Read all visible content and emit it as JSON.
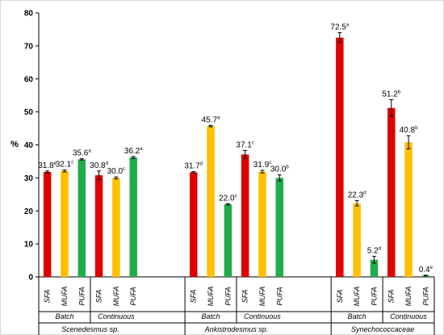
{
  "chart_data": {
    "type": "bar",
    "ylabel": "%",
    "ylim": [
      0,
      80
    ],
    "yticks": [
      0,
      10,
      20,
      30,
      40,
      50,
      60,
      70,
      80
    ],
    "grid": false,
    "colors": {
      "SFA": "#e00000",
      "MUFA": "#ffc000",
      "PUFA": "#1fad4b"
    },
    "organisms": [
      {
        "name": "Scenedesmus sp.",
        "groups": [
          {
            "name": "Batch",
            "bars": [
              {
                "category": "SFA",
                "value": 31.8,
                "error": 0.3,
                "label": "31.8",
                "letter": "e"
              },
              {
                "category": "MUFA",
                "value": 32.1,
                "error": 0.3,
                "label": "32.1",
                "letter": "c"
              },
              {
                "category": "PUFA",
                "value": 35.6,
                "error": 0.2,
                "label": "35.6",
                "letter": "a"
              }
            ]
          },
          {
            "name": "Continuous",
            "bars": [
              {
                "category": "SFA",
                "value": 30.8,
                "error": 1.3,
                "label": "30.8",
                "letter": "d"
              },
              {
                "category": "MUFA",
                "value": 30.0,
                "error": 0.3,
                "label": "30.0",
                "letter": "c"
              },
              {
                "category": "PUFA",
                "value": 36.2,
                "error": 0.3,
                "label": "36.2",
                "letter": "a"
              }
            ]
          }
        ]
      },
      {
        "name": "Ankistrodesmus sp.",
        "groups": [
          {
            "name": "Batch",
            "bars": [
              {
                "category": "SFA",
                "value": 31.7,
                "error": 0.2,
                "label": "31.7",
                "letter": "d"
              },
              {
                "category": "MUFA",
                "value": 45.7,
                "error": 0.2,
                "label": "45.7",
                "letter": "a"
              },
              {
                "category": "PUFA",
                "value": 22.0,
                "error": 0.2,
                "label": "22.0",
                "letter": "c"
              }
            ]
          },
          {
            "name": "Continuous",
            "bars": [
              {
                "category": "SFA",
                "value": 37.1,
                "error": 1.2,
                "label": "37.1",
                "letter": "c"
              },
              {
                "category": "MUFA",
                "value": 31.9,
                "error": 0.4,
                "label": "31.9",
                "letter": "c"
              },
              {
                "category": "PUFA",
                "value": 30.0,
                "error": 0.9,
                "label": "30.0",
                "letter": "b"
              }
            ]
          }
        ]
      },
      {
        "name": "Synechococcaceae",
        "groups": [
          {
            "name": "Batch",
            "bars": [
              {
                "category": "SFA",
                "value": 72.5,
                "error": 1.5,
                "label": "72.5",
                "letter": "a"
              },
              {
                "category": "MUFA",
                "value": 22.3,
                "error": 0.8,
                "label": "22.3",
                "letter": "d"
              },
              {
                "category": "PUFA",
                "value": 5.2,
                "error": 1.0,
                "label": "5.2",
                "letter": "d"
              }
            ]
          },
          {
            "name": "Continuous",
            "bars": [
              {
                "category": "SFA",
                "value": 51.2,
                "error": 2.5,
                "label": "51.2",
                "letter": "b"
              },
              {
                "category": "MUFA",
                "value": 40.8,
                "error": 2.0,
                "label": "40.8",
                "letter": "b"
              },
              {
                "category": "PUFA",
                "value": 0.4,
                "error": 0.1,
                "label": "0.4",
                "letter": "e"
              }
            ]
          }
        ]
      }
    ]
  }
}
